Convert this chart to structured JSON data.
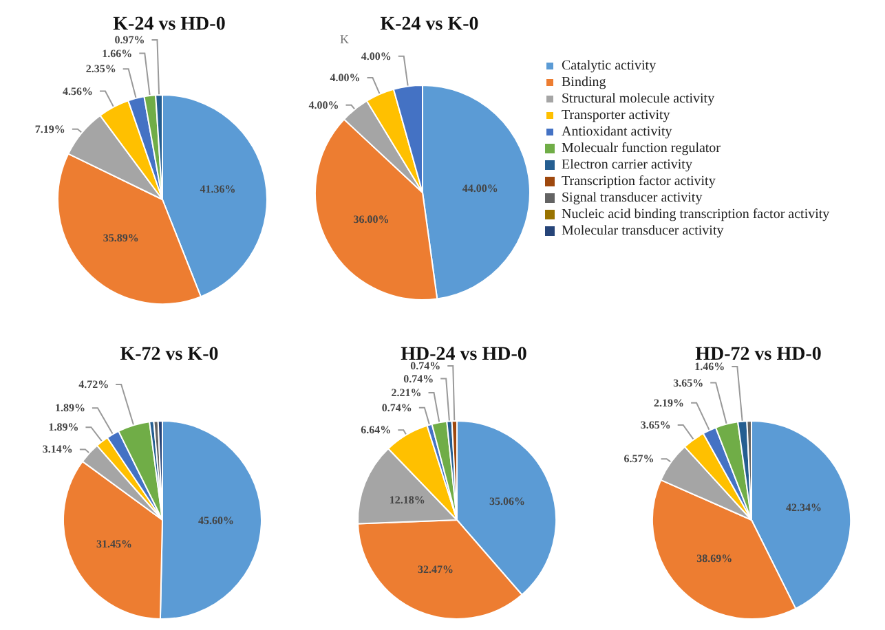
{
  "chart_data": [
    {
      "type": "pie",
      "title": "K-24 vs HD-0",
      "categories": [
        null,
        null,
        null,
        null,
        null,
        null,
        null,
        null,
        null,
        null,
        null
      ],
      "values": [
        41.36,
        35.89,
        7.19,
        4.56,
        2.35,
        1.66,
        0.97,
        null,
        null,
        null,
        null
      ],
      "colors": [
        "#5b9bd5",
        "#ed7d31",
        "#a5a5a5",
        "#ffc000",
        "#4472c4",
        "#70ad47",
        "#255e91",
        null,
        null,
        null,
        null
      ],
      "value_labels": [
        "41.36%",
        "35.89%",
        "7.19%",
        "4.56%",
        "2.35%",
        "1.66%",
        "0.97%",
        null,
        null,
        null,
        null
      ]
    },
    {
      "type": "pie",
      "title": "K-24 vs K-0",
      "annotations": [
        "K"
      ],
      "legend": "right",
      "categories": [
        "Catalytic activity",
        "Binding",
        "Structural molecule activity",
        "Transporter activity",
        "Antioxidant activity",
        "Molecualr function regulator",
        "Electron carrier activity",
        "Transcription factor activity",
        "Signal transducer activity",
        "Nucleic acid binding transcription factor activity",
        "Molecular transducer activity"
      ],
      "values": [
        44.0,
        36.0,
        4.0,
        4.0,
        4.0,
        null,
        null,
        null,
        null,
        null,
        null
      ],
      "colors": [
        "#5b9bd5",
        "#ed7d31",
        "#a5a5a5",
        "#ffc000",
        "#4472c4",
        "#70ad47",
        "#255e91",
        "#9e480e",
        "#636363",
        "#997300",
        "#264478"
      ],
      "value_labels": [
        "44.00%",
        "36.00%",
        "4.00%",
        "4.00%",
        "4.00%",
        null,
        null,
        null,
        null,
        null,
        null
      ]
    },
    {
      "type": "pie",
      "title": "K-72 vs K-0",
      "categories": [
        null,
        null,
        null,
        null,
        null,
        null,
        null,
        null,
        null,
        null,
        null
      ],
      "values": [
        45.6,
        31.45,
        3.14,
        1.89,
        1.89,
        4.72,
        0.63,
        null,
        0.63,
        null,
        0.63
      ],
      "colors": [
        "#5b9bd5",
        "#ed7d31",
        "#a5a5a5",
        "#ffc000",
        "#4472c4",
        "#70ad47",
        "#255e91",
        null,
        "#636363",
        null,
        "#264478"
      ],
      "value_labels": [
        "45.60%",
        "31.45%",
        "3.14%",
        "1.89%",
        "1.89%",
        "4.72%",
        null,
        null,
        null,
        null,
        null
      ]
    },
    {
      "type": "pie",
      "title": "HD-24 vs HD-0",
      "categories": [
        null,
        null,
        null,
        null,
        null,
        null,
        null,
        null,
        null,
        null,
        null
      ],
      "values": [
        35.06,
        32.47,
        12.18,
        6.64,
        0.74,
        2.21,
        0.74,
        0.74,
        null,
        null,
        null
      ],
      "colors": [
        "#5b9bd5",
        "#ed7d31",
        "#a5a5a5",
        "#ffc000",
        "#4472c4",
        "#70ad47",
        "#255e91",
        "#9e480e",
        null,
        null,
        null
      ],
      "value_labels": [
        "35.06%",
        "32.47%",
        "12.18%",
        "6.64%",
        "0.74%",
        "2.21%",
        "0.74%",
        "0.74%",
        null,
        null,
        null
      ]
    },
    {
      "type": "pie",
      "title": "HD-72 vs HD-0",
      "categories": [
        null,
        null,
        null,
        null,
        null,
        null,
        null,
        null,
        null,
        null,
        null
      ],
      "values": [
        42.34,
        38.69,
        6.57,
        3.65,
        2.19,
        3.65,
        1.46,
        null,
        0.73,
        null,
        null
      ],
      "colors": [
        "#5b9bd5",
        "#ed7d31",
        "#a5a5a5",
        "#ffc000",
        "#4472c4",
        "#70ad47",
        "#255e91",
        null,
        "#636363",
        null,
        null
      ],
      "value_labels": [
        "42.34%",
        "38.69%",
        "6.57%",
        "3.65%",
        "2.19%",
        "3.65%",
        "1.46%",
        null,
        null,
        null,
        null
      ]
    }
  ]
}
